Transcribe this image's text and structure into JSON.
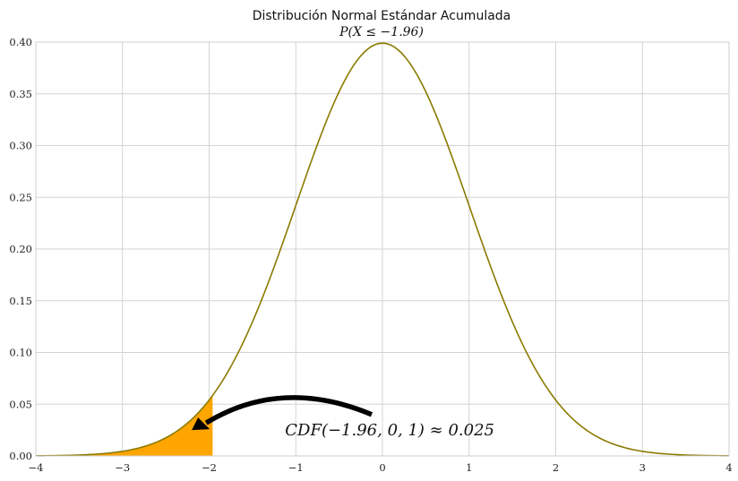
{
  "chart_data": {
    "type": "area",
    "title": "Distribución Normal Estándar Acumulada",
    "subtitle": "P(X ≤ −1.96)",
    "xlabel": "",
    "ylabel": "",
    "xlim": [
      -4,
      4
    ],
    "ylim": [
      0,
      0.4
    ],
    "x_ticks": [
      -4,
      -3,
      -2,
      -1,
      0,
      1,
      2,
      3,
      4
    ],
    "x_tick_labels": [
      "−4",
      "−3",
      "−2",
      "−1",
      "0",
      "1",
      "2",
      "3",
      "4"
    ],
    "y_ticks": [
      0.0,
      0.05,
      0.1,
      0.15,
      0.2,
      0.25,
      0.3,
      0.35,
      0.4
    ],
    "y_tick_labels": [
      "0.00",
      "0.05",
      "0.10",
      "0.15",
      "0.20",
      "0.25",
      "0.30",
      "0.35",
      "0.40"
    ],
    "grid": true,
    "series": [
      {
        "distribution": "normal",
        "mean": 0,
        "sd": 1,
        "color": "#8b7a00",
        "x": [
          -4.0,
          -3.5,
          -3.0,
          -2.5,
          -2.0,
          -1.96,
          -1.5,
          -1.0,
          -0.5,
          0.0,
          0.5,
          1.0,
          1.5,
          2.0,
          2.5,
          3.0,
          3.5,
          4.0
        ],
        "y": [
          0.0001,
          0.0009,
          0.0044,
          0.0175,
          0.054,
          0.0584,
          0.1295,
          0.242,
          0.3521,
          0.3989,
          0.3521,
          0.242,
          0.1295,
          0.054,
          0.0175,
          0.0044,
          0.0009,
          0.0001
        ]
      }
    ],
    "shaded_region": {
      "from": -4,
      "to": -1.96,
      "color": "#ffa500"
    },
    "annotation": {
      "text": "CDF(−1.96, 0, 1) ≈ 0.025",
      "text_x": -1.0,
      "text_y": 0.025,
      "arrow_from": [
        0.0,
        0.04
      ],
      "arrow_to": [
        -2.2,
        0.025
      ]
    }
  }
}
